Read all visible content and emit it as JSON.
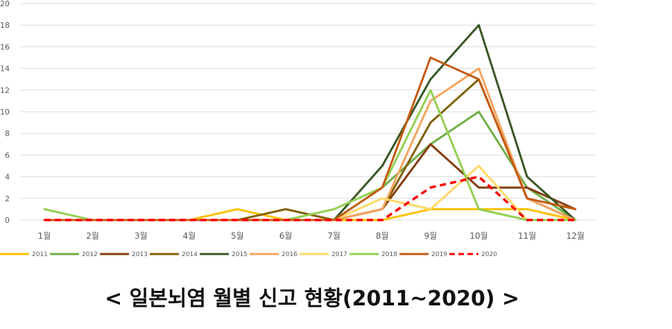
{
  "caption": "< 일본뇌염 월별 신고 현황(2011~2020) >",
  "chart_data": {
    "type": "line",
    "categories": [
      "1월",
      "2월",
      "3월",
      "4월",
      "5월",
      "6월",
      "7월",
      "8월",
      "9월",
      "10월",
      "11월",
      "12월"
    ],
    "ylim": [
      0,
      20
    ],
    "yticks": [
      0,
      2,
      4,
      6,
      8,
      10,
      12,
      14,
      16,
      18,
      20
    ],
    "grid": "horizontal",
    "legend_position": "bottom",
    "series": [
      {
        "name": "2011",
        "color": "#ffc000",
        "dashed": false,
        "values": [
          0,
          0,
          0,
          0,
          1,
          0,
          0,
          0,
          1,
          1,
          1,
          0
        ]
      },
      {
        "name": "2012",
        "color": "#70ad47",
        "dashed": false,
        "values": [
          0,
          0,
          0,
          0,
          0,
          0,
          0,
          3,
          7,
          10,
          3,
          0
        ]
      },
      {
        "name": "2013",
        "color": "#843c0c",
        "dashed": false,
        "values": [
          0,
          0,
          0,
          0,
          0,
          0,
          0,
          1,
          7,
          3,
          3,
          1
        ]
      },
      {
        "name": "2014",
        "color": "#806000",
        "dashed": false,
        "values": [
          0,
          0,
          0,
          0,
          0,
          1,
          0,
          1,
          9,
          13,
          2,
          0
        ]
      },
      {
        "name": "2015",
        "color": "#375623",
        "dashed": false,
        "values": [
          0,
          0,
          0,
          0,
          0,
          0,
          0,
          5,
          13,
          18,
          4,
          0
        ]
      },
      {
        "name": "2016",
        "color": "#f4a460",
        "dashed": false,
        "values": [
          0,
          0,
          0,
          0,
          0,
          0,
          0,
          1,
          11,
          14,
          2,
          0
        ]
      },
      {
        "name": "2017",
        "color": "#ffd966",
        "dashed": false,
        "values": [
          0,
          0,
          0,
          0,
          0,
          0,
          0,
          2,
          1,
          5,
          0,
          0
        ]
      },
      {
        "name": "2018",
        "color": "#92d050",
        "dashed": false,
        "values": [
          1,
          0,
          0,
          0,
          0,
          0,
          1,
          3,
          12,
          1,
          0,
          0
        ]
      },
      {
        "name": "2019",
        "color": "#c55a11",
        "dashed": false,
        "values": [
          0,
          0,
          0,
          0,
          0,
          0,
          0,
          3,
          15,
          13,
          2,
          1
        ]
      },
      {
        "name": "2020",
        "color": "#ff0000",
        "dashed": true,
        "values": [
          0,
          0,
          0,
          0,
          0,
          0,
          0,
          0,
          3,
          4,
          0,
          0
        ]
      }
    ]
  }
}
